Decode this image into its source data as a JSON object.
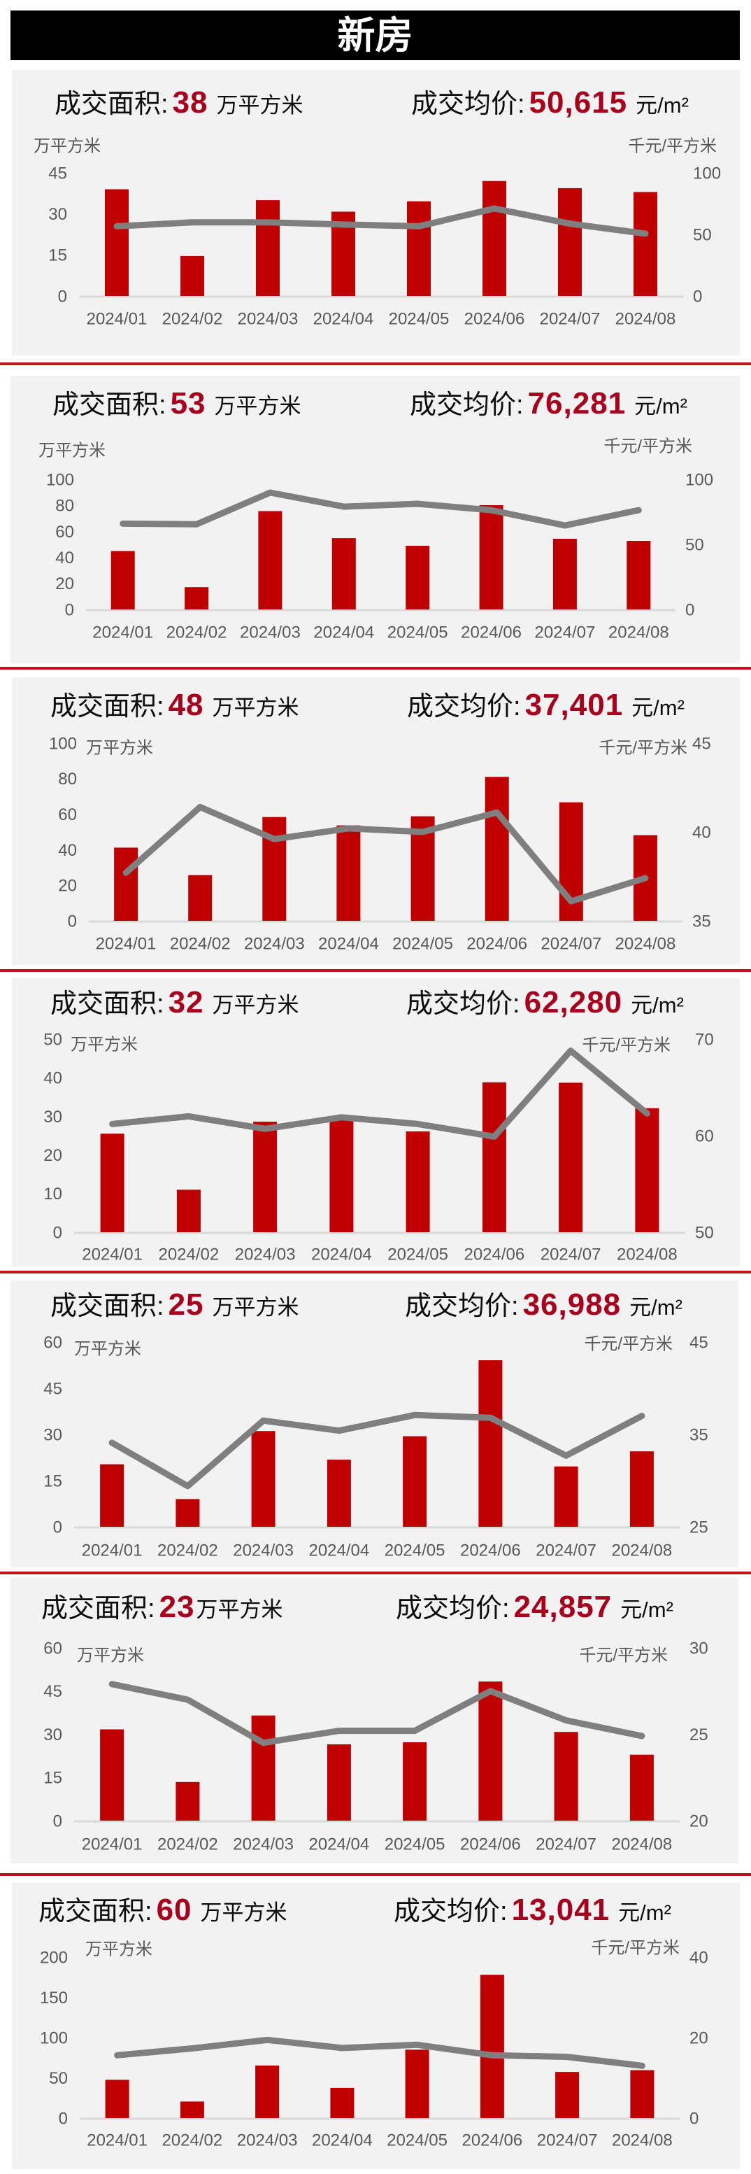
{
  "header": {
    "title": "新房"
  },
  "colors": {
    "bar": "#c00000",
    "line": "#7f7f7f",
    "highlight_number": "#a8001c",
    "separator": "#c0141c",
    "panel_bg": "#f2f2f2",
    "axis_text": "#595959",
    "baseline": "#d9d9d9"
  },
  "panels": [
    {
      "area_label": "成交面积:",
      "area_value": "38",
      "area_unit": "万平方米",
      "price_label": "成交均价:",
      "price_value": "50,615",
      "price_unit": "元/m²"
    },
    {
      "area_label": "成交面积:",
      "area_value": "53",
      "area_unit": "万平方米",
      "price_label": "成交均价:",
      "price_value": "76,281",
      "price_unit": "元/m²"
    },
    {
      "area_label": "成交面积:",
      "area_value": "48",
      "area_unit": "万平方米",
      "price_label": "成交均价:",
      "price_value": "37,401",
      "price_unit": "元/m²"
    },
    {
      "area_label": "成交面积:",
      "area_value": "32",
      "area_unit": "万平方米",
      "price_label": "成交均价:",
      "price_value": "62,280",
      "price_unit": "元/m²"
    },
    {
      "area_label": "成交面积:",
      "area_value": "25",
      "area_unit": "万平方米",
      "price_label": "成交均价:",
      "price_value": "36,988",
      "price_unit": "元/m²"
    },
    {
      "area_label": "成交面积:",
      "area_value": "23",
      "area_unit": "万平方米",
      "price_label": "成交均价:",
      "price_value": "24,857",
      "price_unit": "元/m²"
    },
    {
      "area_label": "成交面积:",
      "area_value": "60",
      "area_unit": "万平方米",
      "price_label": "成交均价:",
      "price_value": "13,041",
      "price_unit": "元/m²"
    }
  ],
  "chart_data": [
    {
      "type": "bar",
      "title": "成交面积: 38 万平方米  成交均价: 50,615 元/m²",
      "categories": [
        "2024/01",
        "2024/02",
        "2024/03",
        "2024/04",
        "2024/05",
        "2024/06",
        "2024/07",
        "2024/08"
      ],
      "series": [
        {
          "name": "成交面积",
          "type": "bar",
          "axis": "left",
          "unit": "万平方米",
          "values": [
            39.0,
            14.6,
            35.0,
            30.8,
            34.6,
            42.0,
            39.4,
            38.0
          ]
        },
        {
          "name": "成交均价",
          "type": "line",
          "axis": "right",
          "unit": "千元/平方米",
          "values": [
            56.6,
            59.8,
            59.8,
            58.0,
            56.6,
            71.0,
            58.7,
            50.6
          ]
        }
      ],
      "xlabel": "",
      "ylabel": "万平方米",
      "y2label": "千元/平方米",
      "ylim": [
        0,
        45
      ],
      "yticks": [
        0,
        15,
        30,
        45
      ],
      "y2lim": [
        0,
        100
      ],
      "y2ticks": [
        0,
        50,
        100
      ],
      "grid": false,
      "legend": "none"
    },
    {
      "type": "bar",
      "title": "成交面积: 53 万平方米  成交均价: 76,281 元/m²",
      "categories": [
        "2024/01",
        "2024/02",
        "2024/03",
        "2024/04",
        "2024/05",
        "2024/06",
        "2024/07",
        "2024/08"
      ],
      "series": [
        {
          "name": "成交面积",
          "type": "bar",
          "axis": "left",
          "unit": "万平方米",
          "values": [
            44.9,
            17.1,
            75.6,
            54.8,
            48.9,
            80.1,
            54.3,
            52.7
          ]
        },
        {
          "name": "成交均价",
          "type": "line",
          "axis": "right",
          "unit": "千元/平方米",
          "values": [
            65.9,
            65.5,
            89.8,
            79.0,
            81.2,
            76.3,
            64.5,
            76.3
          ]
        }
      ],
      "xlabel": "",
      "ylabel": "万平方米",
      "y2label": "千元/平方米",
      "ylim": [
        0,
        100
      ],
      "yticks": [
        0,
        20,
        40,
        60,
        80,
        100
      ],
      "y2lim": [
        0,
        100
      ],
      "y2ticks": [
        0,
        50,
        100
      ],
      "grid": false,
      "legend": "none"
    },
    {
      "type": "bar",
      "title": "成交面积: 48 万平方米  成交均价: 37,401 元/m²",
      "categories": [
        "2024/01",
        "2024/02",
        "2024/03",
        "2024/04",
        "2024/05",
        "2024/06",
        "2024/07",
        "2024/08"
      ],
      "series": [
        {
          "name": "成交面积",
          "type": "bar",
          "axis": "left",
          "unit": "万平方米",
          "values": [
            41.2,
            25.7,
            58.4,
            53.7,
            58.8,
            81.0,
            66.7,
            48.2
          ]
        },
        {
          "name": "成交均价",
          "type": "line",
          "axis": "right",
          "unit": "千元/平方米",
          "values": [
            37.7,
            41.4,
            39.6,
            40.2,
            40.0,
            41.1,
            36.1,
            37.4
          ]
        }
      ],
      "xlabel": "",
      "ylabel": "万平方米",
      "y2label": "千元/平方米",
      "ylim": [
        0,
        100
      ],
      "yticks": [
        0,
        20,
        40,
        60,
        80,
        100
      ],
      "y2lim": [
        35,
        45
      ],
      "y2ticks": [
        35,
        40,
        45
      ],
      "grid": false,
      "legend": "none"
    },
    {
      "type": "bar",
      "title": "成交面积: 32 万平方米  成交均价: 62,280 元/m²",
      "categories": [
        "2024/01",
        "2024/02",
        "2024/03",
        "2024/04",
        "2024/05",
        "2024/06",
        "2024/07",
        "2024/08"
      ],
      "series": [
        {
          "name": "成交面积",
          "type": "bar",
          "axis": "left",
          "unit": "万平方米",
          "values": [
            25.5,
            11.0,
            28.6,
            29.4,
            26.1,
            38.8,
            38.7,
            32.1
          ]
        },
        {
          "name": "成交均价",
          "type": "line",
          "axis": "right",
          "unit": "千元/平方米",
          "values": [
            61.2,
            62.0,
            60.7,
            61.9,
            61.2,
            59.9,
            68.8,
            62.3
          ]
        }
      ],
      "xlabel": "",
      "ylabel": "万平方米",
      "y2label": "千元/平方米",
      "ylim": [
        0,
        50
      ],
      "yticks": [
        0,
        10,
        20,
        30,
        40,
        50
      ],
      "y2lim": [
        50,
        70
      ],
      "y2ticks": [
        50,
        60,
        70
      ],
      "grid": false,
      "legend": "none"
    },
    {
      "type": "bar",
      "title": "成交面积: 25 万平方米  成交均价: 36,988 元/m²",
      "categories": [
        "2024/01",
        "2024/02",
        "2024/03",
        "2024/04",
        "2024/05",
        "2024/06",
        "2024/07",
        "2024/08"
      ],
      "series": [
        {
          "name": "成交面积",
          "type": "bar",
          "axis": "left",
          "unit": "万平方米",
          "values": [
            20.3,
            9.0,
            31.1,
            21.8,
            29.4,
            54.1,
            19.6,
            24.5
          ]
        },
        {
          "name": "成交均价",
          "type": "line",
          "axis": "right",
          "unit": "千元/平方米",
          "values": [
            34.1,
            29.4,
            36.5,
            35.4,
            37.1,
            36.8,
            32.7,
            37.0
          ]
        }
      ],
      "xlabel": "",
      "ylabel": "万平方米",
      "y2label": "千元/平方米",
      "ylim": [
        0,
        60
      ],
      "yticks": [
        0,
        15,
        30,
        45,
        60
      ],
      "y2lim": [
        25,
        45
      ],
      "y2ticks": [
        25,
        35,
        45
      ],
      "grid": false,
      "legend": "none"
    },
    {
      "type": "bar",
      "title": "成交面积: 23万平方米  成交均价: 24,857 元/m²",
      "categories": [
        "2024/01",
        "2024/02",
        "2024/03",
        "2024/04",
        "2024/05",
        "2024/06",
        "2024/07",
        "2024/08"
      ],
      "series": [
        {
          "name": "成交面积",
          "type": "bar",
          "axis": "left",
          "unit": "万平方米",
          "values": [
            31.7,
            13.4,
            36.5,
            26.5,
            27.2,
            48.3,
            30.8,
            22.9
          ]
        },
        {
          "name": "成交均价",
          "type": "line",
          "axis": "right",
          "unit": "千元/平方米",
          "values": [
            27.9,
            27.0,
            24.5,
            25.2,
            25.2,
            27.5,
            25.8,
            24.9
          ]
        }
      ],
      "xlabel": "",
      "ylabel": "万平方米",
      "y2label": "千元/平方米",
      "ylim": [
        0,
        60
      ],
      "yticks": [
        0,
        15,
        30,
        45,
        60
      ],
      "y2lim": [
        20,
        30
      ],
      "y2ticks": [
        20,
        25,
        30
      ],
      "grid": false,
      "legend": "none"
    },
    {
      "type": "bar",
      "title": "成交面积: 60 万平方米  成交均价: 13,041 元/m²",
      "categories": [
        "2024/01",
        "2024/02",
        "2024/03",
        "2024/04",
        "2024/05",
        "2024/06",
        "2024/07",
        "2024/08"
      ],
      "series": [
        {
          "name": "成交面积",
          "type": "bar",
          "axis": "left",
          "unit": "万平方米",
          "values": [
            47.5,
            20.5,
            65.2,
            37.5,
            85.0,
            178.0,
            57.3,
            59.5
          ]
        },
        {
          "name": "成交均价",
          "type": "line",
          "axis": "right",
          "unit": "千元/平方米",
          "values": [
            15.6,
            17.3,
            19.4,
            17.4,
            18.2,
            15.6,
            15.2,
            13.0
          ]
        }
      ],
      "xlabel": "",
      "ylabel": "万平方米",
      "y2label": "千元/平方米",
      "ylim": [
        0,
        200
      ],
      "yticks": [
        0,
        50,
        100,
        150,
        200
      ],
      "y2lim": [
        0,
        40
      ],
      "y2ticks": [
        0,
        20,
        40
      ],
      "grid": false,
      "legend": "none"
    }
  ]
}
